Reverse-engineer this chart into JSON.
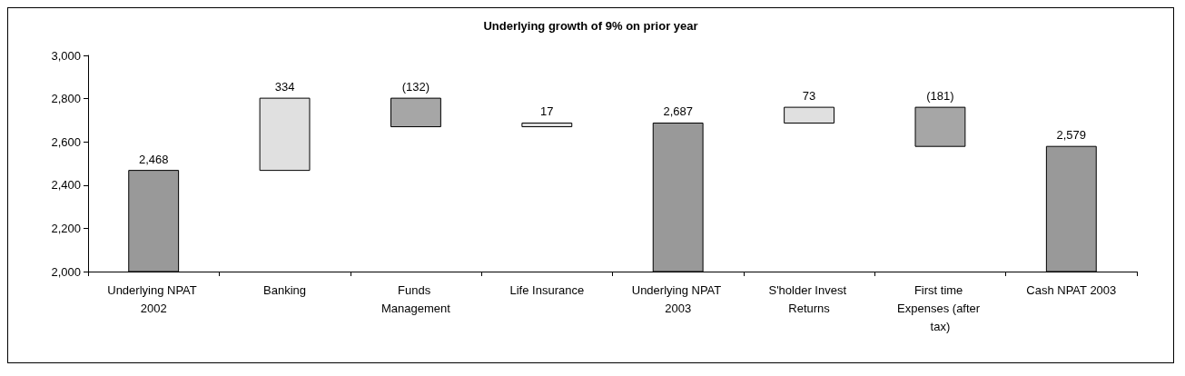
{
  "chart_data": {
    "type": "bar",
    "title": "Underlying growth of 9% on prior year",
    "categories": [
      "Underlying NPAT 2002",
      "Banking",
      "Funds Management",
      "Life Insurance",
      "Underlying NPAT 2003",
      "S'holder Invest Returns",
      "First time Expenses (after tax)",
      "Cash NPAT 2003"
    ],
    "values": [
      2468,
      334,
      -132,
      17,
      2687,
      73,
      -181,
      2579
    ],
    "base": [
      null,
      2468,
      2802,
      2670,
      null,
      2687,
      2760,
      null
    ],
    "colors": [
      "#999999",
      "#e0e0e0",
      "#a6a6a6",
      "#e0e0e0",
      "#999999",
      "#e0e0e0",
      "#a6a6a6",
      "#999999"
    ],
    "value_labels": [
      "2,468",
      "334",
      "(132)",
      "17",
      "2,687",
      "73",
      "(181)",
      "2,579"
    ],
    "ylim": [
      2000,
      3000
    ],
    "yticks": [
      {
        "value": 2000,
        "label": "2,000"
      },
      {
        "value": 2200,
        "label": "2,200"
      },
      {
        "value": 2400,
        "label": "2,400"
      },
      {
        "value": 2600,
        "label": "2,600"
      },
      {
        "value": 2800,
        "label": "2,800"
      },
      {
        "value": 3000,
        "label": "3,000"
      }
    ]
  }
}
